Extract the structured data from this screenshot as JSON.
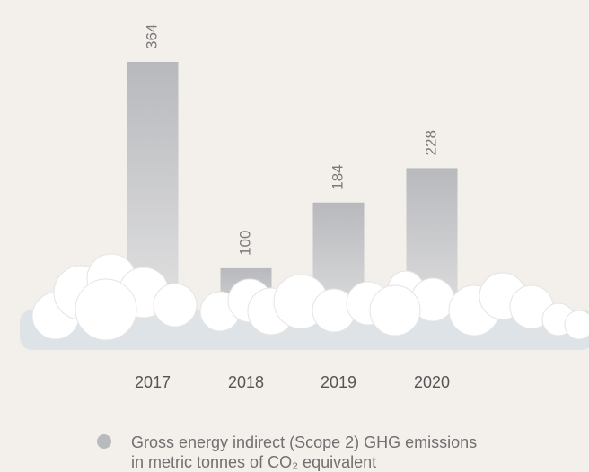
{
  "chart_data": {
    "type": "bar",
    "categories": [
      "2017",
      "2018",
      "2019",
      "2020"
    ],
    "series": [
      {
        "name": "Gross energy indirect (Scope 2) GHG emissions\nin metric tonnes of CO₂ equivalent",
        "color": "#b9babe",
        "values": [
          364,
          100,
          184,
          228
        ]
      }
    ]
  }
}
